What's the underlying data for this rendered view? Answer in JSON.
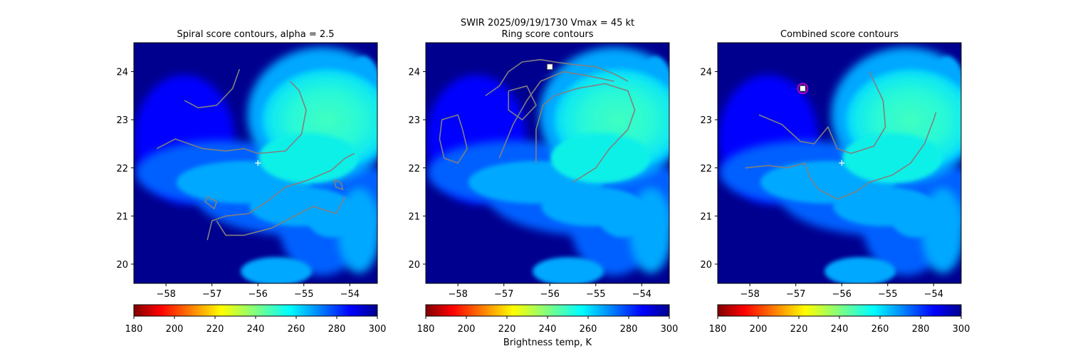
{
  "figure": {
    "suptitle_line1": "SWIR  2025/09/19/1730    Vmax = 45 kt",
    "colorbar_label": "Brightness temp, K"
  },
  "colors": {
    "deep_blue": "#00008f",
    "blue": "#0000ff",
    "mid_blue": "#0060ff",
    "light_blue": "#00a8ff",
    "cyan": "#10f0e8",
    "aqua_green": "#40ffc0",
    "contour": "#808080",
    "center_marker": "#ffffff",
    "ring_marker": "#c000c0"
  },
  "chart_data": [
    {
      "type": "heatmap",
      "title": "Spiral score contours, alpha =  2.5",
      "xlim": [
        -58.7,
        -53.4
      ],
      "ylim": [
        19.6,
        24.6
      ],
      "xticks": [
        "-58",
        "-57",
        "-56",
        "-55",
        "-54"
      ],
      "yticks": [
        "20",
        "21",
        "22",
        "23",
        "24"
      ],
      "center_marker": {
        "x": -56.0,
        "y": 22.1,
        "symbol": "+"
      },
      "contours": [
        [
          [
            -58.2,
            22.4
          ],
          [
            -57.8,
            22.6
          ],
          [
            -57.2,
            22.4
          ],
          [
            -56.7,
            22.35
          ],
          [
            -56.3,
            22.4
          ],
          [
            -56.0,
            22.3
          ],
          [
            -55.4,
            22.35
          ],
          [
            -55.05,
            22.7
          ],
          [
            -54.95,
            23.2
          ],
          [
            -55.1,
            23.6
          ],
          [
            -55.3,
            23.8
          ]
        ],
        [
          [
            -57.6,
            23.4
          ],
          [
            -57.3,
            23.25
          ],
          [
            -56.9,
            23.3
          ],
          [
            -56.55,
            23.65
          ],
          [
            -56.4,
            24.05
          ]
        ],
        [
          [
            -57.1,
            20.5
          ],
          [
            -57.0,
            20.9
          ],
          [
            -56.7,
            21.0
          ],
          [
            -56.2,
            21.05
          ],
          [
            -55.8,
            21.3
          ],
          [
            -55.4,
            21.6
          ],
          [
            -54.9,
            21.75
          ],
          [
            -54.4,
            21.95
          ],
          [
            -54.1,
            22.2
          ],
          [
            -53.9,
            22.3
          ]
        ],
        [
          [
            -56.9,
            20.9
          ],
          [
            -56.7,
            20.6
          ],
          [
            -56.3,
            20.6
          ],
          [
            -55.7,
            20.75
          ],
          [
            -55.2,
            21.0
          ],
          [
            -54.8,
            21.2
          ],
          [
            -54.3,
            21.05
          ],
          [
            -54.1,
            21.4
          ]
        ],
        [
          [
            -57.1,
            21.4
          ],
          [
            -56.9,
            21.3
          ],
          [
            -56.95,
            21.15
          ],
          [
            -57.15,
            21.3
          ],
          [
            -57.1,
            21.4
          ]
        ],
        [
          [
            -54.35,
            21.75
          ],
          [
            -54.2,
            21.7
          ],
          [
            -54.15,
            21.55
          ],
          [
            -54.3,
            21.6
          ],
          [
            -54.35,
            21.75
          ]
        ]
      ],
      "colorbar": {
        "range": [
          180,
          300
        ],
        "ticks": [
          "180",
          "200",
          "220",
          "240",
          "260",
          "280",
          "300"
        ]
      }
    },
    {
      "type": "heatmap",
      "title": "Ring score contours",
      "xlim": [
        -58.7,
        -53.4
      ],
      "ylim": [
        19.6,
        24.6
      ],
      "xticks": [
        "-58",
        "-57",
        "-56",
        "-55",
        "-54"
      ],
      "yticks": [
        "20",
        "21",
        "22",
        "23",
        "24"
      ],
      "square_marker": {
        "x": -56.0,
        "y": 24.1
      },
      "contours": [
        [
          [
            -56.3,
            22.1
          ],
          [
            -56.3,
            22.8
          ],
          [
            -56.15,
            23.3
          ],
          [
            -55.9,
            23.5
          ],
          [
            -55.4,
            23.65
          ],
          [
            -54.8,
            23.75
          ],
          [
            -54.3,
            23.6
          ],
          [
            -54.15,
            23.2
          ],
          [
            -54.3,
            22.8
          ],
          [
            -54.7,
            22.4
          ],
          [
            -55.0,
            22.0
          ],
          [
            -55.5,
            21.7
          ]
        ],
        [
          [
            -57.1,
            22.2
          ],
          [
            -56.8,
            22.9
          ],
          [
            -56.5,
            23.4
          ],
          [
            -56.2,
            23.8
          ],
          [
            -55.7,
            24.0
          ],
          [
            -55.1,
            23.9
          ],
          [
            -54.6,
            23.8
          ]
        ],
        [
          [
            -57.4,
            23.5
          ],
          [
            -57.1,
            23.7
          ],
          [
            -56.9,
            24.0
          ],
          [
            -56.6,
            24.2
          ],
          [
            -56.2,
            24.25
          ],
          [
            -55.9,
            24.2
          ],
          [
            -55.5,
            24.15
          ],
          [
            -55.0,
            24.1
          ],
          [
            -54.6,
            23.95
          ],
          [
            -54.3,
            23.8
          ]
        ],
        [
          [
            -58.3,
            22.2
          ],
          [
            -58.4,
            22.6
          ],
          [
            -58.35,
            23.0
          ],
          [
            -58.0,
            23.1
          ],
          [
            -57.9,
            22.8
          ],
          [
            -57.8,
            22.4
          ],
          [
            -58.0,
            22.1
          ],
          [
            -58.3,
            22.2
          ]
        ],
        [
          [
            -56.9,
            23.6
          ],
          [
            -56.5,
            23.7
          ],
          [
            -56.3,
            23.3
          ],
          [
            -56.6,
            23.0
          ],
          [
            -56.9,
            23.2
          ],
          [
            -56.9,
            23.6
          ]
        ]
      ],
      "colorbar": {
        "range": [
          180,
          300
        ],
        "ticks": [
          "180",
          "200",
          "220",
          "240",
          "260",
          "280",
          "300"
        ]
      }
    },
    {
      "type": "heatmap",
      "title": "Combined score contours",
      "xlim": [
        -58.7,
        -53.4
      ],
      "ylim": [
        19.6,
        24.6
      ],
      "xticks": [
        "-58",
        "-57",
        "-56",
        "-55",
        "-54"
      ],
      "yticks": [
        "20",
        "21",
        "22",
        "23",
        "24"
      ],
      "center_marker": {
        "x": -56.0,
        "y": 22.1,
        "symbol": "+"
      },
      "square_marker": {
        "x": -56.85,
        "y": 23.65
      },
      "ring_marker": {
        "x": -56.85,
        "y": 23.65
      },
      "contours": [
        [
          [
            -57.8,
            23.1
          ],
          [
            -57.3,
            22.9
          ],
          [
            -56.9,
            22.55
          ],
          [
            -56.6,
            22.5
          ],
          [
            -56.3,
            22.85
          ],
          [
            -56.1,
            22.4
          ],
          [
            -55.8,
            22.3
          ],
          [
            -55.3,
            22.45
          ],
          [
            -55.05,
            22.85
          ],
          [
            -55.1,
            23.4
          ],
          [
            -55.3,
            23.8
          ],
          [
            -55.4,
            24.0
          ]
        ],
        [
          [
            -58.1,
            22.0
          ],
          [
            -57.6,
            22.05
          ],
          [
            -57.2,
            22.0
          ],
          [
            -56.8,
            22.1
          ],
          [
            -56.7,
            21.8
          ],
          [
            -56.5,
            21.55
          ],
          [
            -56.1,
            21.35
          ],
          [
            -55.7,
            21.5
          ],
          [
            -55.4,
            21.7
          ],
          [
            -54.9,
            21.85
          ],
          [
            -54.5,
            22.1
          ],
          [
            -54.2,
            22.5
          ],
          [
            -54.0,
            23.0
          ],
          [
            -53.95,
            23.15
          ]
        ]
      ],
      "colorbar": {
        "range": [
          180,
          300
        ],
        "ticks": [
          "180",
          "200",
          "220",
          "240",
          "260",
          "280",
          "300"
        ]
      }
    }
  ]
}
